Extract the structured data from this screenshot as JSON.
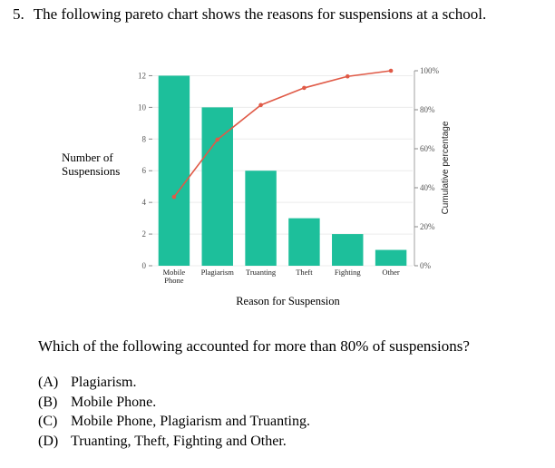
{
  "question": {
    "number": "5.",
    "stem": "The following pareto chart shows the reasons for suspensions at a school.",
    "prompt": "Which of the following accounted for more than 80% of suspensions?",
    "options": [
      {
        "letter": "(A)",
        "text": "Plagiarism."
      },
      {
        "letter": "(B)",
        "text": "Mobile Phone."
      },
      {
        "letter": "(C)",
        "text": "Mobile Phone, Plagiarism and Truanting."
      },
      {
        "letter": "(D)",
        "text": "Truanting, Theft, Fighting and Other."
      }
    ]
  },
  "chart_data": {
    "type": "bar",
    "categories": [
      "Mobile Phone",
      "Plagiarism",
      "Truanting",
      "Theft",
      "Fighting",
      "Other"
    ],
    "category_lines": [
      [
        "Mobile",
        "Phone"
      ],
      [
        "Plagiarism"
      ],
      [
        "Truanting"
      ],
      [
        "Theft"
      ],
      [
        "Fighting"
      ],
      [
        "Other"
      ]
    ],
    "values": [
      12,
      10,
      6,
      3,
      2,
      1
    ],
    "cumulative_percent": [
      35.3,
      64.7,
      82.4,
      91.2,
      97.1,
      100
    ],
    "xlabel": "Reason for Suspension",
    "ylabel_lines": [
      "Number of",
      "Suspensions"
    ],
    "y2label": "Cumulative percentage",
    "ylim": [
      0,
      13
    ],
    "yticks": [
      0,
      2,
      4,
      6,
      8,
      10,
      12
    ],
    "y2ticks": [
      "0%",
      "20%",
      "40%",
      "60%",
      "80%",
      "100%"
    ],
    "grid": true,
    "bar_color": "#1dbf9b",
    "line_color": "#e05a47"
  }
}
